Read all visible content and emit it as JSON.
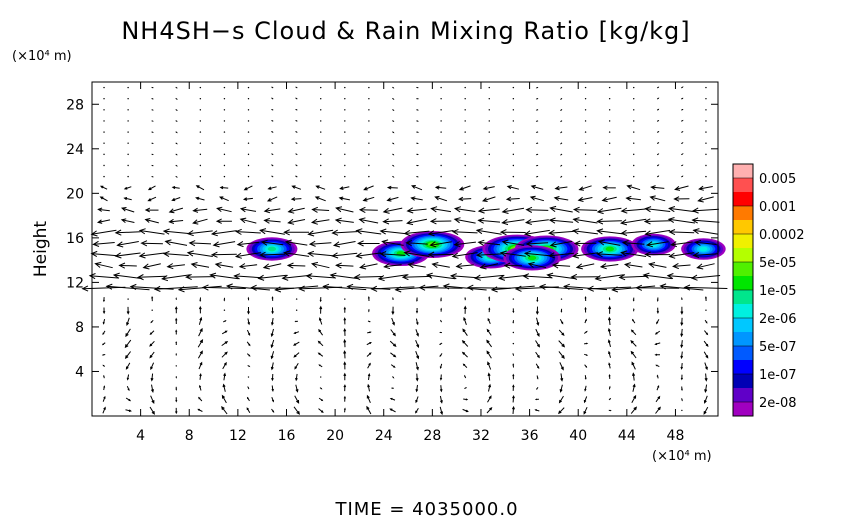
{
  "chart_data": {
    "type": "heatmap",
    "title": "NH4SH−s Cloud & Rain Mixing Ratio [kg/kg]",
    "xlabel": "",
    "ylabel": "Height",
    "x_unit": "(×10⁴ m)",
    "y_unit": "(×10⁴ m)",
    "time_label": "TIME  =  4035000.0",
    "xlim": [
      0,
      51.5
    ],
    "ylim": [
      0,
      30
    ],
    "x_ticks": [
      4,
      8,
      12,
      16,
      20,
      24,
      28,
      32,
      36,
      40,
      44,
      48
    ],
    "x_tick_labels": [
      "4",
      "8",
      "12",
      "16",
      "20",
      "24",
      "28",
      "32",
      "36",
      "40",
      "44",
      "48"
    ],
    "y_ticks": [
      4,
      8,
      12,
      16,
      20,
      24,
      28
    ],
    "y_tick_labels": [
      "4",
      "8",
      "12",
      "16",
      "20",
      "24",
      "28"
    ],
    "colorbar": {
      "labels": [
        "0.005",
        "0.001",
        "0.0002",
        "5e-05",
        "1e-05",
        "2e-06",
        "5e-07",
        "1e-07",
        "2e-08"
      ],
      "colors": [
        "#ffb0b0",
        "#ff5050",
        "#ff0000",
        "#ff7a00",
        "#ffc800",
        "#f0f000",
        "#b4ff00",
        "#50f000",
        "#00e600",
        "#00e68c",
        "#00f0e0",
        "#00c8ff",
        "#0096ff",
        "#005aff",
        "#0000ff",
        "#0000b4",
        "#6000c8",
        "#a000c0"
      ]
    },
    "cloud_cells": [
      {
        "x": 14.8,
        "y": 15.0,
        "level": 5
      },
      {
        "x": 25.4,
        "y": 14.6,
        "level": 6
      },
      {
        "x": 28.0,
        "y": 15.4,
        "level": 7
      },
      {
        "x": 32.8,
        "y": 14.3,
        "level": 5
      },
      {
        "x": 35.0,
        "y": 15.0,
        "level": 8
      },
      {
        "x": 37.4,
        "y": 15.0,
        "level": 7
      },
      {
        "x": 36.2,
        "y": 14.2,
        "level": 6
      },
      {
        "x": 42.6,
        "y": 15.0,
        "level": 6
      },
      {
        "x": 46.2,
        "y": 15.4,
        "level": 4
      },
      {
        "x": 50.3,
        "y": 15.0,
        "level": 4
      }
    ],
    "wind_vectors": {
      "type": "quiver",
      "description_units": "arrow field; strong westward jets near heights 11-20"
    }
  }
}
